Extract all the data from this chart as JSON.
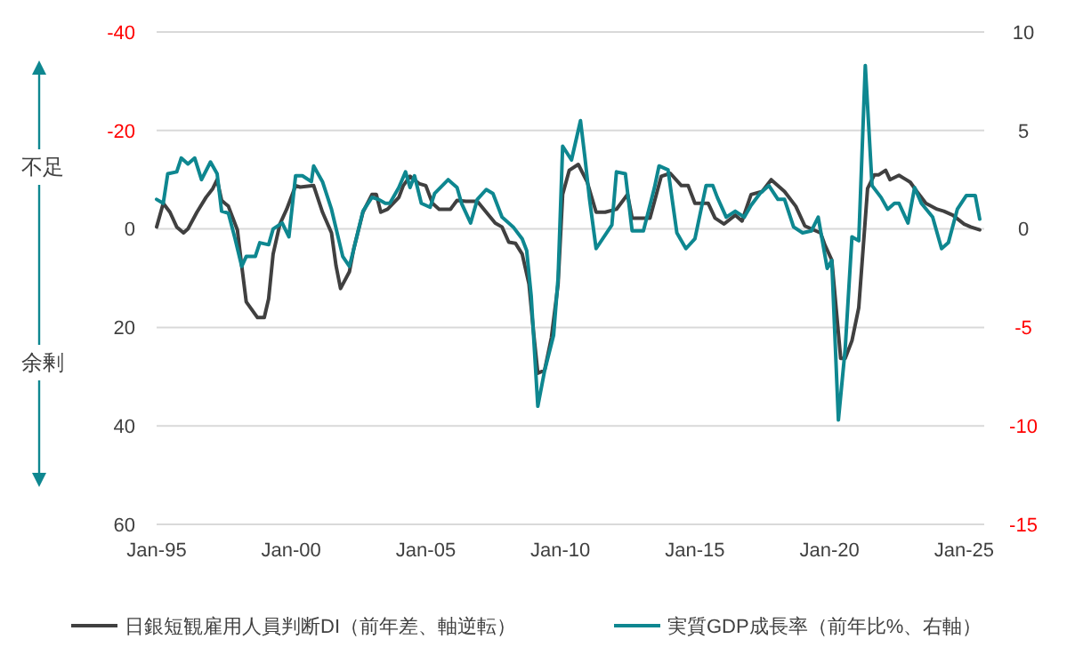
{
  "chart_data": {
    "type": "line",
    "xlim": [
      "1995-01",
      "2025-10"
    ],
    "xticks": [
      {
        "value": "1995-01",
        "label": "Jan-95"
      },
      {
        "value": "2000-01",
        "label": "Jan-00"
      },
      {
        "value": "2005-01",
        "label": "Jan-05"
      },
      {
        "value": "2010-01",
        "label": "Jan-10"
      },
      {
        "value": "2015-01",
        "label": "Jan-15"
      },
      {
        "value": "2020-01",
        "label": "Jan-20"
      },
      {
        "value": "2025-01",
        "label": "Jan-25"
      }
    ],
    "ylim": [
      60,
      -40
    ],
    "yticks": [
      -40,
      -20,
      0,
      20,
      40,
      60
    ],
    "y2lim": [
      -15,
      10
    ],
    "y2ticks": [
      -15,
      -10,
      -5,
      0,
      5,
      10
    ],
    "grid": "y",
    "legend": "bottom",
    "annotations": [
      "不足",
      "余剰"
    ],
    "series": [
      {
        "name": "日銀短観雇用人員判断DI（前年差、軸逆転）",
        "color": "#404040",
        "x": [
          "1995-01",
          "1995-04",
          "1995-07",
          "1995-10",
          "1996-01",
          "1996-03",
          "1996-07",
          "1996-11",
          "1997-02",
          "1997-04",
          "1997-06",
          "1997-09",
          "1998-01",
          "1998-03",
          "1998-05",
          "1998-10",
          "1999-01",
          "1999-03",
          "1999-05",
          "1999-08",
          "1999-11",
          "2000-03",
          "2000-05",
          "2000-11",
          "2001-03",
          "2001-07",
          "2001-09",
          "2001-11",
          "2002-03",
          "2002-05",
          "2002-09",
          "2003-01",
          "2003-03",
          "2003-05",
          "2003-08",
          "2004-01",
          "2004-03",
          "2004-06",
          "2004-10",
          "2005-01",
          "2005-04",
          "2005-07",
          "2005-12",
          "2006-03",
          "2006-07",
          "2006-12",
          "2007-04",
          "2007-08",
          "2007-11",
          "2008-02",
          "2008-05",
          "2008-08",
          "2008-11",
          "2009-01",
          "2009-03",
          "2009-06",
          "2009-09",
          "2009-12",
          "2010-02",
          "2010-05",
          "2010-09",
          "2011-01",
          "2011-05",
          "2011-09",
          "2012-02",
          "2012-07",
          "2012-09",
          "2013-05",
          "2013-10",
          "2014-02",
          "2014-07",
          "2014-10",
          "2015-01",
          "2015-07",
          "2015-10",
          "2016-02",
          "2016-07",
          "2016-10",
          "2017-02",
          "2017-07",
          "2017-11",
          "2018-05",
          "2018-10",
          "2019-02",
          "2019-06",
          "2019-09",
          "2019-11",
          "2020-02",
          "2020-06",
          "2020-08",
          "2020-11",
          "2021-02",
          "2021-06",
          "2021-09",
          "2021-11",
          "2022-02",
          "2022-04",
          "2022-08",
          "2023-01",
          "2023-04",
          "2023-08",
          "2024-01",
          "2024-04",
          "2024-08",
          "2025-01",
          "2025-04",
          "2025-08"
        ],
        "values": [
          -0.4,
          -5.2,
          -3.4,
          -0.4,
          0.8,
          0,
          -3.4,
          -6.4,
          -8.2,
          -10,
          -5.8,
          -4.6,
          0.2,
          7.5,
          14.8,
          18,
          18,
          14.2,
          5.1,
          -1,
          -4,
          -8.8,
          -8.5,
          -8.8,
          -3.4,
          0.8,
          7.5,
          12.1,
          8.7,
          3.9,
          -3.4,
          -7,
          -7,
          -3.4,
          -4,
          -6.4,
          -8.8,
          -10.7,
          -9.2,
          -8.8,
          -5.2,
          -4,
          -4,
          -5.8,
          -5.6,
          -5.6,
          -3.4,
          -1.2,
          -0.4,
          2.7,
          2.9,
          5.1,
          11.2,
          20.8,
          29.3,
          28.7,
          22.1,
          11.2,
          -7,
          -11.9,
          -13.1,
          -9.5,
          -3.4,
          -3.4,
          -4,
          -7,
          -2.2,
          -2.2,
          -10.7,
          -11.3,
          -8.8,
          -8.8,
          -5.2,
          -5.2,
          -2.2,
          -1,
          -2.8,
          -1.6,
          -7,
          -7.6,
          -10,
          -7.6,
          -4.6,
          -0.6,
          0.2,
          0.8,
          3.3,
          6.3,
          26.3,
          26.3,
          22.7,
          16,
          -8.2,
          -11,
          -11,
          -11.9,
          -10,
          -10.9,
          -9.5,
          -7.6,
          -5.2,
          -4,
          -3.6,
          -2.8,
          -1,
          -0.4,
          0.2
        ]
      },
      {
        "name": "実質GDP成長率（前年比%、右軸）",
        "color": "#0e8790",
        "axis": "y2",
        "x": [
          "1995-01",
          "1995-04",
          "1995-06",
          "1995-10",
          "1995-12",
          "1996-03",
          "1996-06",
          "1996-09",
          "1997-01",
          "1997-04",
          "1997-06",
          "1997-09",
          "1997-12",
          "1998-03",
          "1998-05",
          "1998-09",
          "1998-11",
          "1999-03",
          "1999-05",
          "1999-09",
          "1999-12",
          "2000-03",
          "2000-06",
          "2000-10",
          "2000-11",
          "2001-03",
          "2001-07",
          "2001-12",
          "2002-03",
          "2002-05",
          "2002-09",
          "2003-01",
          "2003-04",
          "2003-07",
          "2003-09",
          "2004-01",
          "2004-04",
          "2004-06",
          "2004-08",
          "2004-11",
          "2005-03",
          "2005-05",
          "2005-11",
          "2006-03",
          "2006-05",
          "2006-09",
          "2006-12",
          "2007-04",
          "2007-07",
          "2007-11",
          "2008-04",
          "2008-08",
          "2008-10",
          "2008-12",
          "2009-03",
          "2009-06",
          "2009-10",
          "2009-12",
          "2010-02",
          "2010-06",
          "2010-10",
          "2010-12",
          "2011-02",
          "2011-05",
          "2011-12",
          "2012-02",
          "2012-06",
          "2012-09",
          "2013-02",
          "2013-07",
          "2013-09",
          "2014-01",
          "2014-05",
          "2014-09",
          "2015-01",
          "2015-06",
          "2015-09",
          "2015-11",
          "2016-03",
          "2016-07",
          "2016-11",
          "2017-02",
          "2017-06",
          "2017-10",
          "2018-02",
          "2018-05",
          "2018-09",
          "2019-01",
          "2019-05",
          "2019-08",
          "2019-12",
          "2020-02",
          "2020-05",
          "2020-08",
          "2020-11",
          "2021-02",
          "2021-05",
          "2021-08",
          "2021-12",
          "2022-03",
          "2022-06",
          "2022-08",
          "2022-12",
          "2023-03",
          "2023-06",
          "2023-11",
          "2024-03",
          "2024-06",
          "2024-10",
          "2025-02",
          "2025-06",
          "2025-08"
        ],
        "values": [
          1.5,
          1.3,
          2.8,
          2.9,
          3.6,
          3.3,
          3.6,
          2.5,
          3.4,
          2.8,
          0.9,
          0.8,
          -0.5,
          -1.9,
          -1.4,
          -1.4,
          -0.7,
          -0.8,
          0,
          0.3,
          -0.4,
          2.7,
          2.7,
          2.4,
          3.2,
          2.4,
          1.0,
          -1.4,
          -1.9,
          -1.0,
          0.9,
          1.6,
          1.5,
          1.3,
          1.3,
          2.1,
          2.9,
          2.1,
          2.7,
          1.3,
          1.1,
          1.8,
          2.5,
          2.1,
          1.3,
          0.3,
          1.5,
          2.0,
          1.8,
          0.6,
          0.1,
          -0.5,
          -1.1,
          -3.4,
          -9.0,
          -7.2,
          -5.4,
          -2.5,
          4.2,
          3.5,
          5.5,
          3.6,
          1.5,
          -1.0,
          0.2,
          2.9,
          2.8,
          -0.1,
          -0.1,
          2.1,
          3.2,
          3.0,
          -0.2,
          -1.0,
          -0.5,
          2.2,
          2.2,
          1.6,
          0.6,
          0.9,
          0.6,
          1.2,
          1.8,
          2.2,
          1.5,
          1.5,
          0.1,
          -0.2,
          -0.1,
          0.6,
          -2.0,
          -1.6,
          -9.7,
          -6.1,
          -0.4,
          -0.6,
          8.3,
          2.2,
          1.6,
          1.0,
          1.3,
          1.3,
          0.3,
          2.1,
          1.3,
          0.6,
          -1.0,
          -0.7,
          1.0,
          1.7,
          1.7,
          0.5
        ]
      }
    ]
  }
}
